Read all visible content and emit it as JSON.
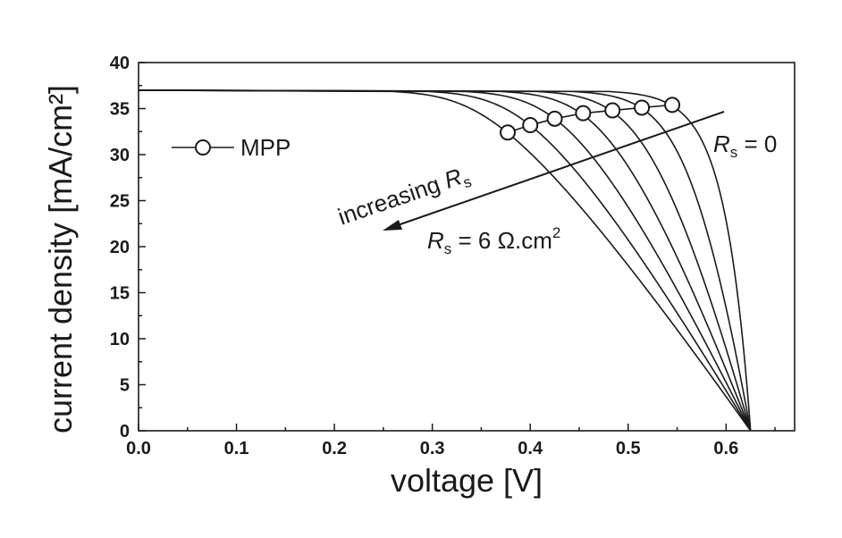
{
  "chart_data": {
    "type": "line",
    "xlabel": "voltage [V]",
    "ylabel": "current density [mA/cm²]",
    "xlim": [
      0.0,
      0.67
    ],
    "ylim": [
      0,
      40
    ],
    "x_ticks": [
      "0.0",
      "0.1",
      "0.2",
      "0.3",
      "0.4",
      "0.5",
      "0.6"
    ],
    "y_ticks": [
      "0",
      "5",
      "10",
      "15",
      "20",
      "25",
      "30",
      "35",
      "40"
    ],
    "grid": false,
    "jsc": 37.0,
    "voc": 0.625,
    "series_params": [
      0,
      1,
      2,
      3,
      4,
      5,
      6
    ],
    "mpp": {
      "label": "MPP",
      "points": [
        {
          "x": 0.545,
          "y": 35.4
        },
        {
          "x": 0.514,
          "y": 35.1
        },
        {
          "x": 0.484,
          "y": 34.8
        },
        {
          "x": 0.454,
          "y": 34.5
        },
        {
          "x": 0.425,
          "y": 33.9
        },
        {
          "x": 0.4,
          "y": 33.2
        },
        {
          "x": 0.377,
          "y": 32.4
        }
      ]
    },
    "annotations": {
      "rs_zero": {
        "italic": "R",
        "sub": "s",
        "text": " = 0"
      },
      "rs_six": {
        "italic": "R",
        "sub": "s",
        "text": " = 6 Ω.cm",
        "sup": "2"
      },
      "increasing": {
        "text": "increasing ",
        "italic": "R",
        "sub": "s"
      }
    }
  }
}
